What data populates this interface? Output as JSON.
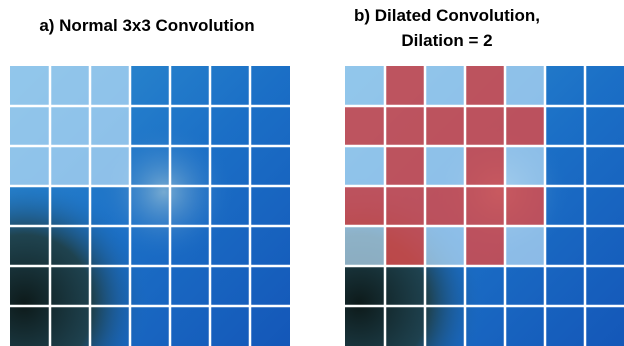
{
  "panels": [
    {
      "title": "a) Normal 3x3 Convolution"
    },
    {
      "title_lines": [
        "b) Dilated Convolution,",
        "Dilation = 2"
      ]
    }
  ]
}
